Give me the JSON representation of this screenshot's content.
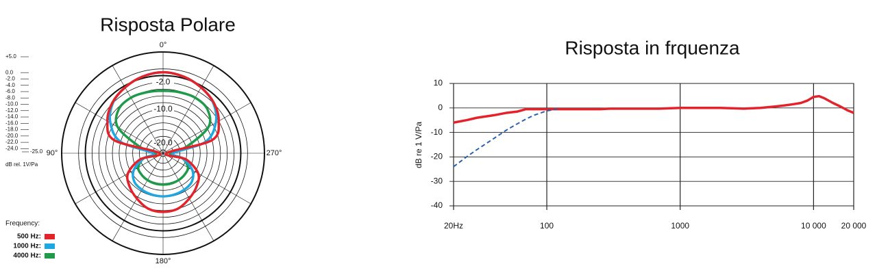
{
  "chart_data": [
    {
      "type": "polar",
      "title": "Risposta Polare",
      "direction": "counterclockwise",
      "rlim": [
        -25,
        5
      ],
      "rticks": [
        {
          "value": 5,
          "label": "+5.0"
        },
        {
          "value": 0,
          "label": "0.0"
        },
        {
          "value": -2,
          "label": "-2.0"
        },
        {
          "value": -4,
          "label": "-4.0"
        },
        {
          "value": -6,
          "label": "-6.0"
        },
        {
          "value": -8,
          "label": "-8.0"
        },
        {
          "value": -10,
          "label": "-10.0"
        },
        {
          "value": -12,
          "label": "-12.0"
        },
        {
          "value": -14,
          "label": "-14.0"
        },
        {
          "value": -16,
          "label": "-16.0"
        },
        {
          "value": -18,
          "label": "-18.0"
        },
        {
          "value": -20,
          "label": "-20.0"
        },
        {
          "value": -22,
          "label": "-22.0"
        },
        {
          "value": -24,
          "label": "-24.0"
        },
        {
          "value": -25,
          "label": "-25.0"
        }
      ],
      "r_label": "dB rel. 1V/Pa",
      "angle_ticks": [
        {
          "value": 0,
          "label": "0°"
        },
        {
          "value": 90,
          "label": "90°"
        },
        {
          "value": 180,
          "label": "180°"
        },
        {
          "value": 270,
          "label": "270°"
        }
      ],
      "legend_title": "Frequency:",
      "theta": [
        0,
        15,
        30,
        45,
        60,
        75,
        90,
        105,
        120,
        135,
        150,
        165,
        180,
        195,
        210,
        225,
        240,
        255,
        270,
        285,
        300,
        315,
        330,
        345
      ],
      "series": [
        {
          "name": "500 Hz:",
          "color": "#e3222a",
          "values": [
            -1,
            -1.5,
            -2.5,
            -3.8,
            -6,
            -10,
            -24,
            -18,
            -13,
            -11,
            -9.5,
            -8,
            -7.6,
            -8,
            -9.5,
            -11,
            -13,
            -18,
            -24,
            -10,
            -6,
            -3.8,
            -2.5,
            -1.5
          ]
        },
        {
          "name": "1000 Hz:",
          "color": "#1ea7e1",
          "values": [
            -1,
            -1.5,
            -2.5,
            -4,
            -7,
            -12,
            -22,
            -19,
            -15,
            -13,
            -12.5,
            -12.3,
            -12.2,
            -12.3,
            -12.5,
            -13,
            -15,
            -19,
            -22,
            -12,
            -7,
            -4,
            -2.5,
            -1.5
          ]
        },
        {
          "name": "4000 Hz:",
          "color": "#1f9a4a",
          "values": [
            -6.5,
            -6.3,
            -6,
            -6.5,
            -9.5,
            -18,
            -23,
            -19,
            -16.5,
            -16,
            -15.8,
            -15.7,
            -15.7,
            -15.7,
            -15.8,
            -16,
            -16.5,
            -19,
            -23,
            -18,
            -9.5,
            -6.5,
            -6,
            -6.3
          ]
        }
      ]
    },
    {
      "type": "line",
      "title": "Risposta in frquenza",
      "y_label": "dB re 1 V/Pa",
      "log_x": true,
      "grid": true,
      "xlim": [
        20,
        20000
      ],
      "xticks": [
        {
          "value": 20,
          "label": "20Hz"
        },
        100,
        1000,
        {
          "value": 10000,
          "label": "10 000"
        },
        {
          "value": 20000,
          "label": "20 000"
        }
      ],
      "ylim": [
        -40,
        10
      ],
      "yticks": [
        -40,
        -30,
        -20,
        -10,
        0,
        10
      ],
      "x": [
        20,
        25,
        30,
        40,
        50,
        60,
        70,
        80,
        100,
        120,
        150,
        200,
        250,
        300,
        400,
        500,
        700,
        1000,
        1500,
        2000,
        3000,
        4000,
        5000,
        6000,
        7000,
        8000,
        9000,
        10000,
        11000,
        12000,
        14000,
        16000,
        18000,
        20000
      ],
      "series": [
        {
          "color": "#e3222a",
          "values": [
            -6,
            -5,
            -4,
            -3,
            -2,
            -1.5,
            -0.5,
            -0.5,
            -0.5,
            -0.5,
            -0.5,
            -0.5,
            -0.5,
            -0.3,
            -0.3,
            -0.3,
            -0.3,
            0,
            0,
            0,
            -0.3,
            0,
            0.5,
            1,
            1.5,
            2,
            3,
            4.5,
            4.8,
            4,
            2,
            0.5,
            -1,
            -2
          ]
        },
        {
          "color": "#2a62b0",
          "dash": true,
          "values": [
            -24,
            -20,
            -17,
            -12.5,
            -9,
            -6.5,
            -4.5,
            -3,
            -1.2,
            -0.5,
            null,
            null,
            null,
            null,
            null,
            null,
            null,
            null,
            null,
            null,
            null,
            null,
            null,
            null,
            null,
            null,
            null,
            null,
            null,
            null,
            null,
            null,
            null,
            null
          ]
        }
      ]
    }
  ]
}
